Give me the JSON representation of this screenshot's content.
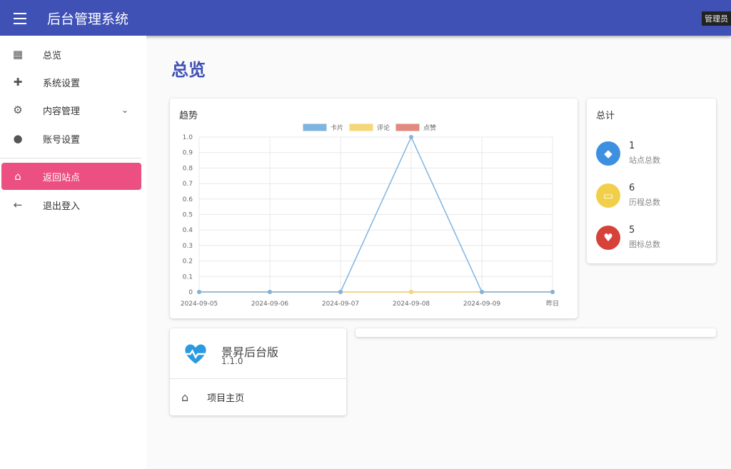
{
  "header": {
    "title": "后台管理系统",
    "user": "管理员"
  },
  "sidebar": {
    "items": [
      {
        "label": "总览",
        "icon": "dashboard-icon"
      },
      {
        "label": "系统设置",
        "icon": "puzzle-icon"
      },
      {
        "label": "内容管理",
        "icon": "gear-icon"
      },
      {
        "label": "账号设置",
        "icon": "person-icon"
      },
      {
        "label": "返回站点",
        "icon": "home-icon"
      },
      {
        "label": "退出登入",
        "icon": "arrow-left-icon"
      }
    ]
  },
  "main": {
    "title": "总览",
    "trend": {
      "title": "趋势"
    },
    "totals": {
      "title": "总计",
      "items": [
        {
          "value": "1",
          "label": "站点总数",
          "color": "#3d8fe0"
        },
        {
          "value": "6",
          "label": "历程总数",
          "color": "#f2cf4a"
        },
        {
          "value": "5",
          "label": "图标总数",
          "color": "#d6423a"
        }
      ]
    },
    "app": {
      "name": "景昇后台版",
      "version": "1.1.0",
      "link": "项目主页"
    }
  },
  "chart_data": {
    "type": "line",
    "title": "趋势",
    "categories": [
      "2024-09-05",
      "2024-09-06",
      "2024-09-07",
      "2024-09-08",
      "2024-09-09",
      "昨日"
    ],
    "ylim": [
      0,
      1
    ],
    "yticks": [
      "0",
      "0.1",
      "0.2",
      "0.3",
      "0.4",
      "0.5",
      "0.6",
      "0.7",
      "0.8",
      "0.9",
      "1.0"
    ],
    "grid": true,
    "legend": "top",
    "series": [
      {
        "name": "卡片",
        "values": [
          0,
          0,
          0,
          1,
          0,
          0
        ],
        "color": "#7fb4df"
      },
      {
        "name": "评论",
        "values": [
          0,
          0,
          0,
          0,
          0,
          0
        ],
        "color": "#f5d77a"
      },
      {
        "name": "点赞",
        "values": [
          0,
          0,
          0,
          0,
          0,
          0
        ],
        "color": "#e08a80"
      }
    ]
  }
}
